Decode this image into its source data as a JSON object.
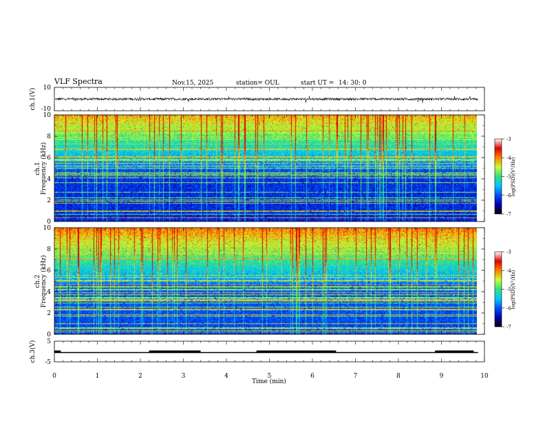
{
  "header": {
    "title": "VLF Spectra",
    "date": "Nov.15, 2025",
    "station": "station= OUL",
    "start_label": "start  UT =",
    "start_time": "14: 30: 0"
  },
  "chart_data": [
    {
      "type": "line",
      "name": "ch1-waveform",
      "ylabel": "ch.1(V)",
      "ylim": [
        -10,
        10
      ],
      "y_ticks": [
        "10",
        "-10"
      ],
      "baseline": 0,
      "noise_amplitude": 1
    },
    {
      "type": "heatmap",
      "name": "ch1-spectrogram",
      "ylabel_lines": [
        "ch.1",
        "Frequency  (kHz)"
      ],
      "ylim": [
        0,
        10
      ],
      "y_ticks": [
        "0",
        "2",
        "4",
        "6",
        "8",
        "10"
      ],
      "colorbar": {
        "label": "log(PSD)(V²/Hz)",
        "range": [
          -7,
          -3
        ],
        "ticks": [
          "-7",
          "-6",
          "-5",
          "-4",
          "-3"
        ],
        "colors": [
          "#000000",
          "#0000b0",
          "#0050ff",
          "#00c8ff",
          "#30e080",
          "#c8ff30",
          "#ff8000",
          "#e00000",
          "#ffffff"
        ]
      }
    },
    {
      "type": "heatmap",
      "name": "ch2-spectrogram",
      "ylabel_lines": [
        "ch.2",
        "Frequency  (kHz)"
      ],
      "ylim": [
        0,
        10
      ],
      "y_ticks": [
        "0",
        "2",
        "4",
        "6",
        "8",
        "10"
      ],
      "colorbar": {
        "label": "log(PSD)(V²/Hz)",
        "range": [
          -7,
          -3
        ],
        "ticks": [
          "-7",
          "-6",
          "-5",
          "-4",
          "-3"
        ],
        "colors": [
          "#000000",
          "#0000b0",
          "#0050ff",
          "#00c8ff",
          "#30e080",
          "#c8ff30",
          "#ff8000",
          "#e00000",
          "#ffffff"
        ]
      }
    },
    {
      "type": "line",
      "name": "ch3-signal",
      "ylabel": "ch.3(V)",
      "ylim": [
        -5,
        5
      ],
      "y_ticks": [
        "5",
        "-5"
      ],
      "levels": [
        {
          "x0": 0.0,
          "x1": 0.15,
          "y": 0.5
        },
        {
          "x0": 2.2,
          "x1": 3.4,
          "y": 0.5
        },
        {
          "x0": 4.7,
          "x1": 6.55,
          "y": 0.5
        },
        {
          "x0": 8.85,
          "x1": 9.75,
          "y": 0.5
        }
      ],
      "baseline_level": -0.5,
      "x_end": 9.85
    }
  ],
  "x_axis": {
    "label": "Time  (min)",
    "range": [
      0,
      10
    ],
    "ticks": [
      "0",
      "1",
      "2",
      "3",
      "4",
      "5",
      "6",
      "7",
      "8",
      "9",
      "10"
    ],
    "data_end": 9.85
  }
}
